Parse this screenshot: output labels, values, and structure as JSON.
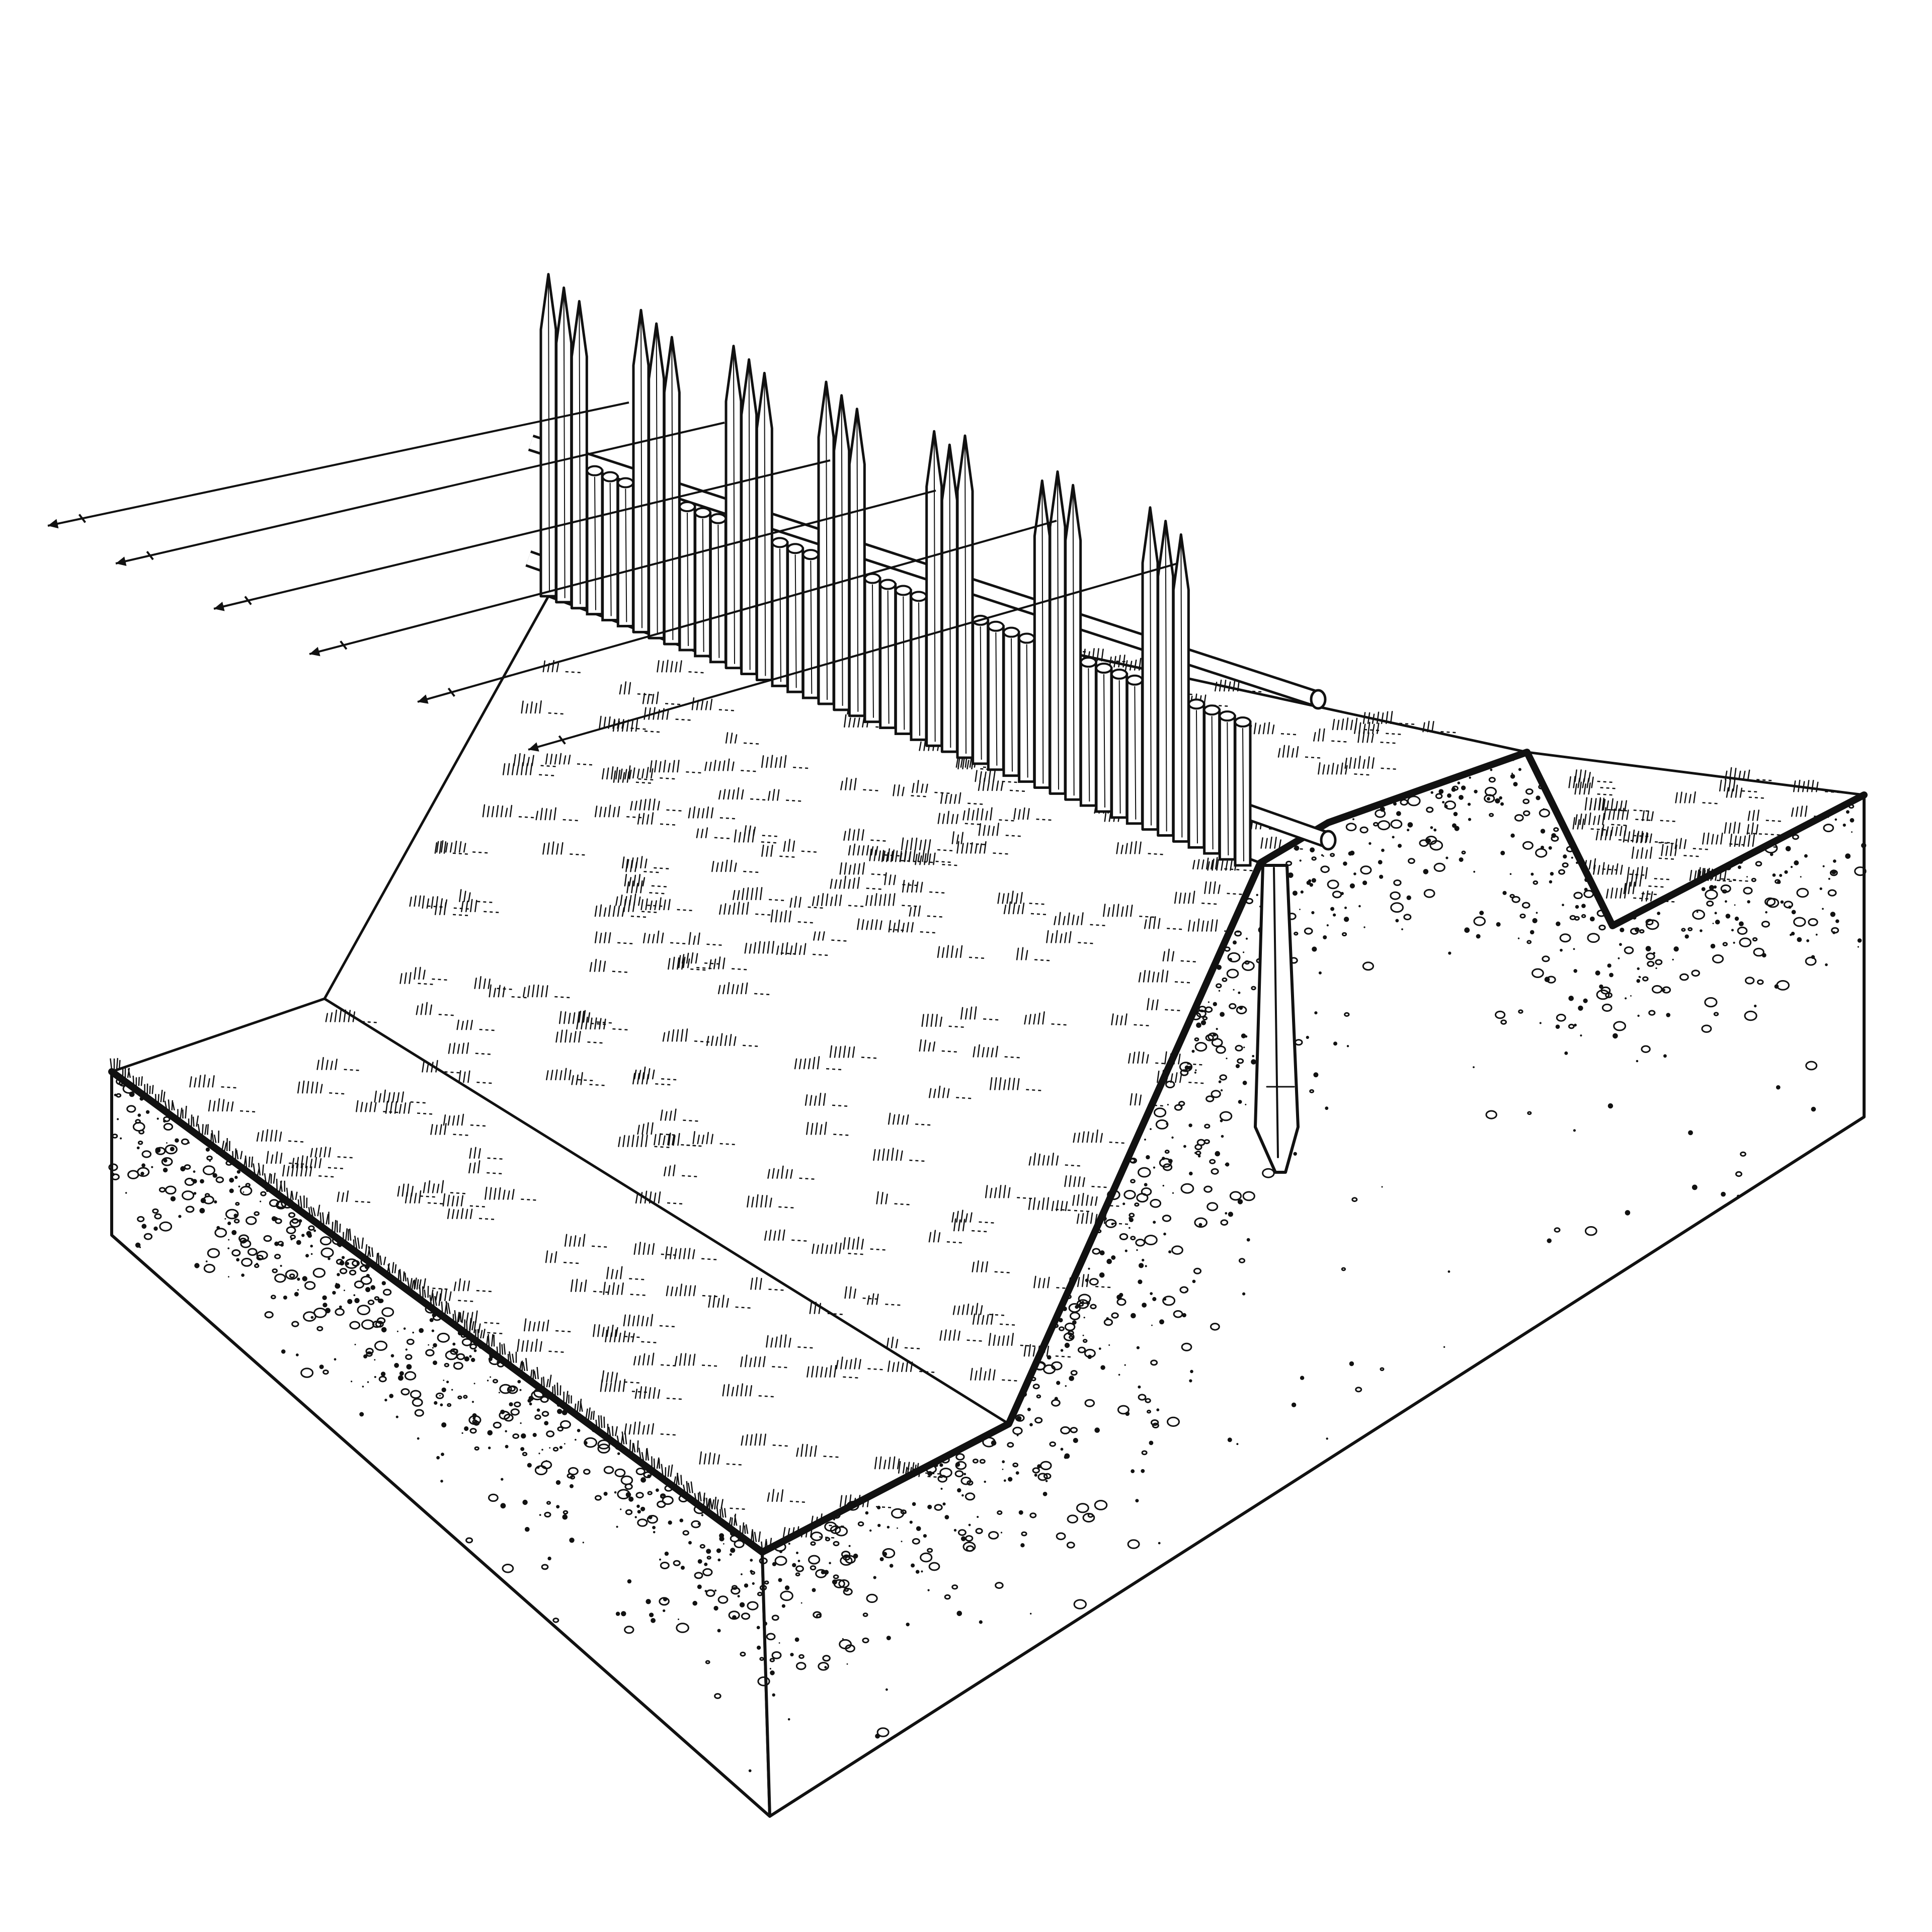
{
  "figure": {
    "ink_color": "#111111",
    "paper_color": "#ffffff",
    "parts": [
      "palisade-stake",
      "horizontal-rail",
      "rampart-slope",
      "ditch",
      "ground-block",
      "profile-line",
      "pointer-line",
      "sample-stake"
    ]
  }
}
